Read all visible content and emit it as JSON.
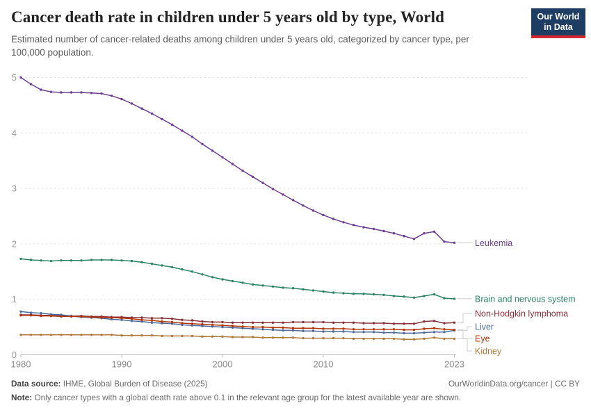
{
  "header": {
    "title": "Cancer death rate in children under 5 years old by type, World",
    "subtitle": "Estimated number of cancer-related deaths among children under 5 years old, categorized by cancer type, per 100,000 population.",
    "logo": {
      "line1": "Our World",
      "line2": "in Data",
      "bg_color": "#1d3d63",
      "accent_color": "#d7282f"
    }
  },
  "chart_data": {
    "type": "line",
    "title": "Cancer death rate in children under 5 years old by type, World",
    "xlabel": "",
    "ylabel": "",
    "ylim": [
      0,
      5
    ],
    "yticks": [
      0,
      1,
      2,
      3,
      4,
      5
    ],
    "xticks": [
      1980,
      1990,
      2000,
      2010,
      2023
    ],
    "grid": "horizontal-dashed",
    "legend_position": "right-of-line-ends",
    "x": [
      1980,
      1981,
      1982,
      1983,
      1984,
      1985,
      1986,
      1987,
      1988,
      1989,
      1990,
      1991,
      1992,
      1993,
      1994,
      1995,
      1996,
      1997,
      1998,
      1999,
      2000,
      2001,
      2002,
      2003,
      2004,
      2005,
      2006,
      2007,
      2008,
      2009,
      2010,
      2011,
      2012,
      2013,
      2014,
      2015,
      2016,
      2017,
      2018,
      2019,
      2020,
      2021,
      2022,
      2023
    ],
    "series": [
      {
        "name": "Leukemia",
        "color": "#6d3e91",
        "values": [
          5.0,
          4.88,
          4.78,
          4.74,
          4.73,
          4.73,
          4.73,
          4.72,
          4.71,
          4.67,
          4.61,
          4.53,
          4.44,
          4.35,
          4.25,
          4.15,
          4.04,
          3.93,
          3.8,
          3.68,
          3.56,
          3.44,
          3.32,
          3.21,
          3.1,
          2.99,
          2.89,
          2.79,
          2.69,
          2.6,
          2.52,
          2.45,
          2.39,
          2.34,
          2.3,
          2.27,
          2.23,
          2.19,
          2.14,
          2.09,
          2.19,
          2.22,
          2.04,
          2.02
        ]
      },
      {
        "name": "Brain and nervous system",
        "color": "#2c8465",
        "values": [
          1.73,
          1.71,
          1.7,
          1.69,
          1.7,
          1.7,
          1.7,
          1.71,
          1.71,
          1.71,
          1.7,
          1.69,
          1.67,
          1.64,
          1.61,
          1.58,
          1.54,
          1.5,
          1.45,
          1.4,
          1.36,
          1.33,
          1.3,
          1.27,
          1.25,
          1.23,
          1.21,
          1.2,
          1.18,
          1.16,
          1.14,
          1.12,
          1.11,
          1.1,
          1.1,
          1.09,
          1.08,
          1.06,
          1.05,
          1.03,
          1.06,
          1.09,
          1.02,
          1.01
        ]
      },
      {
        "name": "Non-Hodgkin lymphoma",
        "color": "#883039",
        "values": [
          0.72,
          0.72,
          0.71,
          0.71,
          0.7,
          0.7,
          0.7,
          0.69,
          0.69,
          0.68,
          0.68,
          0.67,
          0.67,
          0.66,
          0.66,
          0.65,
          0.63,
          0.62,
          0.6,
          0.59,
          0.59,
          0.58,
          0.58,
          0.58,
          0.58,
          0.58,
          0.58,
          0.59,
          0.59,
          0.59,
          0.59,
          0.58,
          0.58,
          0.58,
          0.57,
          0.57,
          0.57,
          0.56,
          0.56,
          0.56,
          0.6,
          0.61,
          0.57,
          0.58
        ]
      },
      {
        "name": "Liver",
        "color": "#4c6a9c",
        "values": [
          0.78,
          0.76,
          0.75,
          0.73,
          0.72,
          0.7,
          0.68,
          0.67,
          0.66,
          0.64,
          0.63,
          0.61,
          0.6,
          0.58,
          0.57,
          0.56,
          0.54,
          0.53,
          0.52,
          0.51,
          0.5,
          0.49,
          0.48,
          0.47,
          0.46,
          0.45,
          0.44,
          0.44,
          0.43,
          0.43,
          0.42,
          0.42,
          0.42,
          0.41,
          0.41,
          0.41,
          0.4,
          0.4,
          0.39,
          0.39,
          0.4,
          0.41,
          0.41,
          0.44
        ]
      },
      {
        "name": "Eye",
        "color": "#b13507",
        "values": [
          0.71,
          0.71,
          0.7,
          0.7,
          0.69,
          0.69,
          0.69,
          0.68,
          0.67,
          0.67,
          0.66,
          0.65,
          0.63,
          0.62,
          0.6,
          0.59,
          0.57,
          0.56,
          0.55,
          0.54,
          0.53,
          0.52,
          0.51,
          0.5,
          0.5,
          0.49,
          0.49,
          0.48,
          0.48,
          0.48,
          0.47,
          0.47,
          0.47,
          0.46,
          0.46,
          0.46,
          0.46,
          0.46,
          0.45,
          0.45,
          0.47,
          0.48,
          0.46,
          0.45
        ]
      },
      {
        "name": "Kidney",
        "color": "#af7a39",
        "values": [
          0.36,
          0.36,
          0.36,
          0.36,
          0.36,
          0.36,
          0.36,
          0.36,
          0.36,
          0.36,
          0.35,
          0.35,
          0.35,
          0.35,
          0.34,
          0.34,
          0.34,
          0.34,
          0.33,
          0.33,
          0.33,
          0.32,
          0.32,
          0.32,
          0.31,
          0.31,
          0.31,
          0.31,
          0.3,
          0.3,
          0.3,
          0.3,
          0.3,
          0.29,
          0.29,
          0.29,
          0.29,
          0.29,
          0.28,
          0.28,
          0.29,
          0.31,
          0.29,
          0.29
        ]
      }
    ]
  },
  "footer": {
    "datasource_label": "Data source:",
    "datasource_value": "IHME, Global Burden of Disease (2025)",
    "credit": "OurWorldinData.org/cancer | CC BY",
    "note_label": "Note:",
    "note_value": "Only cancer types with a global death rate above 0.1 in the relevant age group for the latest available year are shown."
  }
}
